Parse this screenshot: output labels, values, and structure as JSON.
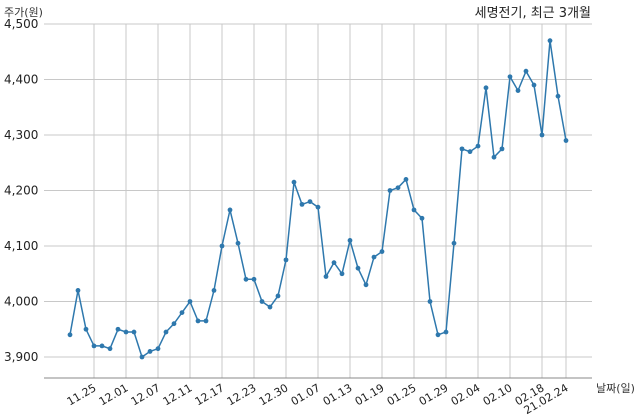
{
  "chart_data": {
    "type": "line",
    "title": "세명전기, 최근 3개월",
    "ylabel": "주가(원)",
    "xlabel": "날짜(일)",
    "ylim": [
      3890,
      4500
    ],
    "yticks": [
      3900,
      4000,
      4100,
      4200,
      4300,
      4400,
      4500
    ],
    "ytick_labels": [
      "3,900",
      "4,000",
      "4,100",
      "4,200",
      "4,300",
      "4,400",
      "4,500"
    ],
    "xticks": [
      "11.25",
      "12.01",
      "12.07",
      "12.11",
      "12.17",
      "12.23",
      "12.30",
      "01.07",
      "01.13",
      "01.19",
      "01.25",
      "01.29",
      "02.04",
      "02.10",
      "02.18",
      "21.02.24"
    ],
    "xtick_index": [
      3,
      7,
      11,
      15,
      19,
      23,
      27,
      31,
      35,
      39,
      43,
      47,
      51,
      55,
      59,
      62
    ],
    "grid": true,
    "series": [
      {
        "values": [
          3940,
          4020,
          3950,
          3920,
          3920,
          3915,
          3950,
          3945,
          3945,
          3900,
          3910,
          3915,
          3945,
          3960,
          3980,
          4000,
          3965,
          3965,
          4020,
          4100,
          4165,
          4105,
          4040,
          4040,
          4000,
          3990,
          4010,
          4075,
          4215,
          4175,
          4180,
          4170,
          4045,
          4070,
          4050,
          4110,
          4060,
          4030,
          4080,
          4090,
          4200,
          4205,
          4220,
          4165,
          4150,
          4000,
          3940,
          3945,
          4105,
          4275,
          4270,
          4280,
          4385,
          4260,
          4275,
          4405,
          4380,
          4415,
          4390,
          4300,
          4470,
          4370,
          4290
        ]
      }
    ]
  }
}
